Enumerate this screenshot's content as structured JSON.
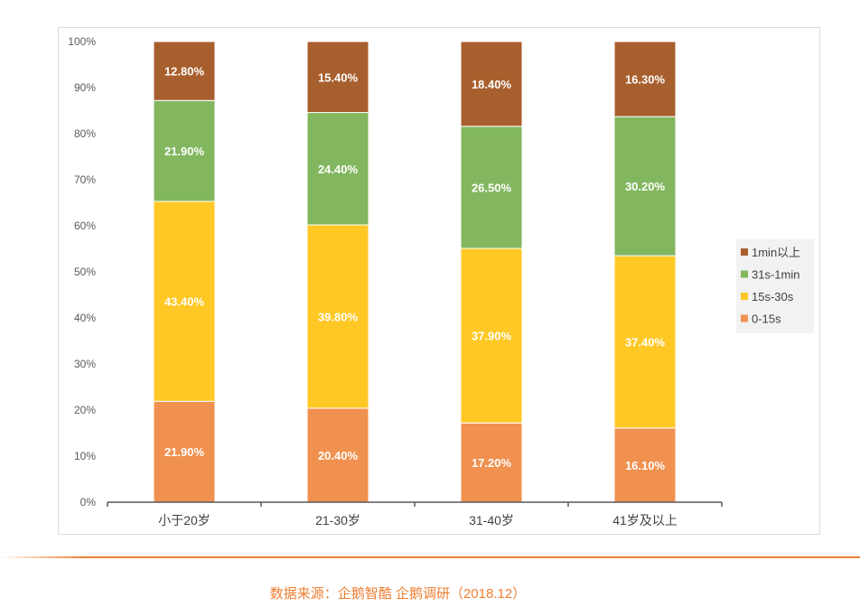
{
  "chart_data": {
    "type": "bar",
    "stacked": true,
    "percent_stacked": true,
    "categories": [
      "小于20岁",
      "21-30岁",
      "31-40岁",
      "41岁及以上"
    ],
    "series": [
      {
        "name": "0-15s",
        "color": "#F0914F",
        "values": [
          21.9,
          20.4,
          17.2,
          16.1
        ],
        "labels": [
          "21.90%",
          "20.40%",
          "17.20%",
          "16.10%"
        ]
      },
      {
        "name": "15s-30s",
        "color": "#FFC825",
        "values": [
          43.4,
          39.8,
          37.9,
          37.4
        ],
        "labels": [
          "43.40%",
          "39.80%",
          "37.90%",
          "37.40%"
        ]
      },
      {
        "name": "31s-1min",
        "color": "#82B75F",
        "values": [
          21.9,
          24.4,
          26.5,
          30.2
        ],
        "labels": [
          "21.90%",
          "24.40%",
          "26.50%",
          "30.20%"
        ]
      },
      {
        "name": "1min以上",
        "color": "#A85F2E",
        "values": [
          12.8,
          15.4,
          18.4,
          16.3
        ],
        "labels": [
          "12.80%",
          "15.40%",
          "18.40%",
          "16.30%"
        ]
      }
    ],
    "yticks": [
      "0%",
      "10%",
      "20%",
      "30%",
      "40%",
      "50%",
      "60%",
      "70%",
      "80%",
      "90%",
      "100%"
    ],
    "ylim": [
      0,
      100
    ],
    "grid": false,
    "legend_position": "right",
    "legend_order": [
      "1min以上",
      "31s-1min",
      "15s-30s",
      "0-15s"
    ]
  },
  "source_note": "数据来源：企鹅智酷 企鹅调研（2018.12）"
}
